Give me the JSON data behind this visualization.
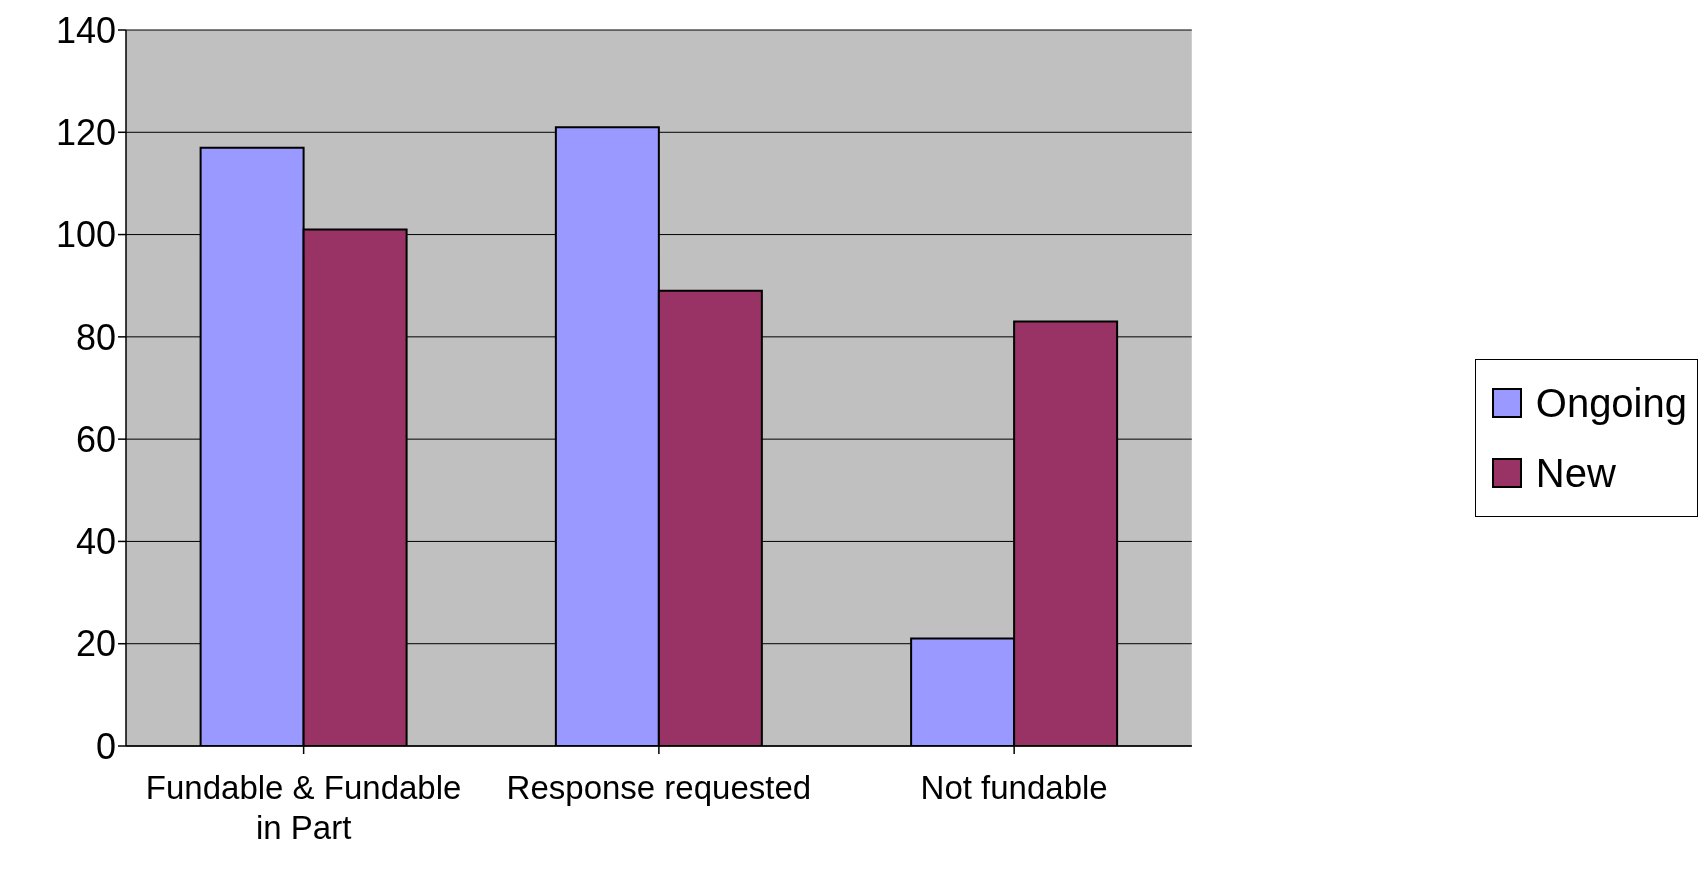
{
  "chart_data": {
    "type": "bar",
    "categories": [
      "Fundable & Fundable in Part",
      "Response requested",
      "Not fundable"
    ],
    "series": [
      {
        "name": "Ongoing",
        "color": "#9999ff",
        "values": [
          117,
          121,
          21
        ]
      },
      {
        "name": "New",
        "color": "#993366",
        "values": [
          101,
          89,
          83
        ]
      }
    ],
    "ylim": [
      0,
      140
    ],
    "yticks": [
      0,
      20,
      40,
      60,
      80,
      100,
      120,
      140
    ],
    "grid": "y",
    "legend": "right"
  }
}
